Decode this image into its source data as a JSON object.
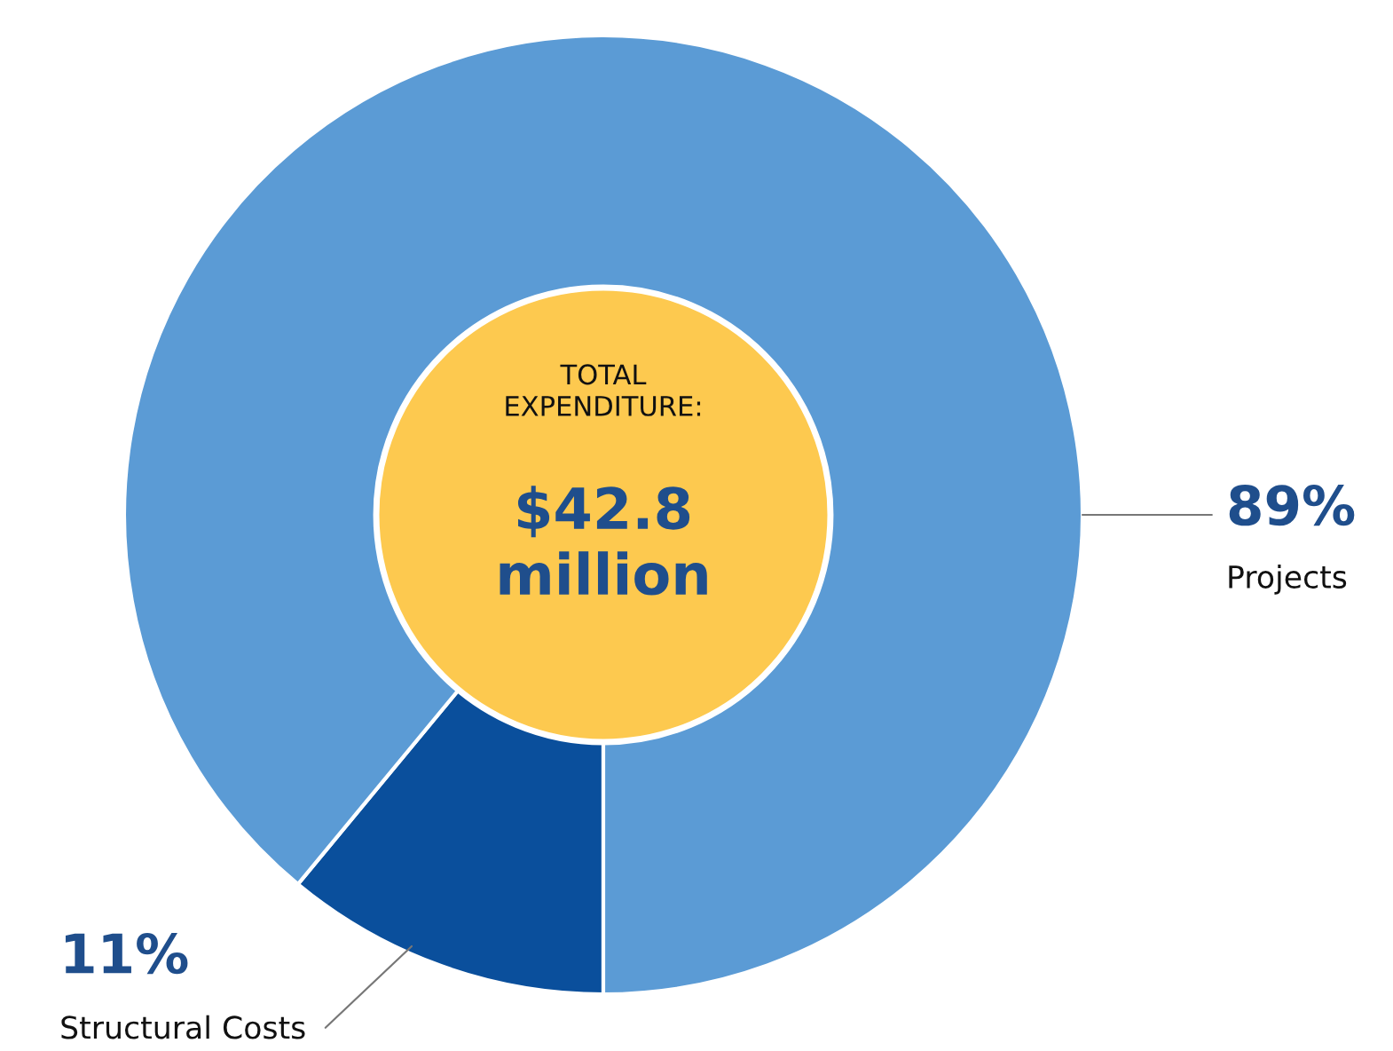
{
  "chart_data": {
    "type": "donut",
    "categories": [
      "Structural Costs",
      "Projects"
    ],
    "values": [
      11,
      89
    ],
    "colors": [
      "#0a4f9c",
      "#5b9bd5"
    ],
    "value_labels": [
      "11%",
      "89%"
    ],
    "legend": false,
    "annotations": [
      "TOTAL\nEXPENDITURE:",
      "$42.8\nmillion"
    ]
  }
}
